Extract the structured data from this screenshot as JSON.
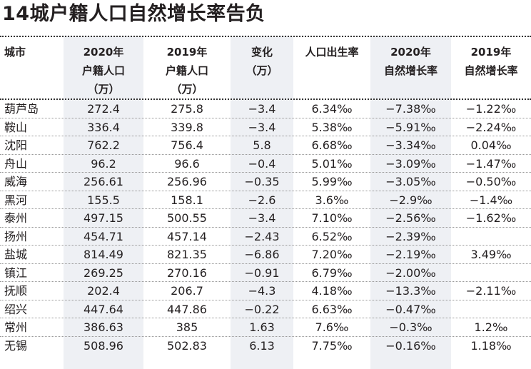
{
  "title": "14城户籍人口自然增长率告负",
  "columns": [
    {
      "key": "city",
      "lines": [
        "城市"
      ]
    },
    {
      "key": "pop2020",
      "lines": [
        "2020年",
        "户籍人口",
        "（万）"
      ]
    },
    {
      "key": "pop2019",
      "lines": [
        "2019年",
        "户籍人口",
        "（万）"
      ]
    },
    {
      "key": "change",
      "lines": [
        "变化",
        "（万）"
      ]
    },
    {
      "key": "birth_rate",
      "lines": [
        "人口出生率"
      ]
    },
    {
      "key": "growth2020",
      "lines": [
        "2020年",
        "自然增长率"
      ]
    },
    {
      "key": "growth2019",
      "lines": [
        "2019年",
        "自然增长率"
      ]
    }
  ],
  "rows": [
    [
      "葫芦岛",
      "272.4",
      "275.8",
      "−3.4",
      "6.34‰",
      "−7.38‰",
      "−1.22‰"
    ],
    [
      "鞍山",
      "336.4",
      "339.8",
      "−3.4",
      "5.38‰",
      "−5.91‰",
      "−2.24‰"
    ],
    [
      "沈阳",
      "762.2",
      "756.4",
      "5.8",
      "6.68‰",
      "−3.34‰",
      "0.04‰"
    ],
    [
      "舟山",
      "96.2",
      "96.6",
      "−0.4",
      "5.01‰",
      "−3.09‰",
      "−1.47‰"
    ],
    [
      "威海",
      "256.61",
      "256.96",
      "−0.35",
      "5.99‰",
      "−3.05‰",
      "−0.50‰"
    ],
    [
      "黑河",
      "155.5",
      "158.1",
      "−2.6",
      "3.6‰",
      "−2.9‰",
      "−1.4‰"
    ],
    [
      "泰州",
      "497.15",
      "500.55",
      "−3.4",
      "7.10‰",
      "−2.56‰",
      "−1.62‰"
    ],
    [
      "扬州",
      "454.71",
      "457.14",
      "−2.43",
      "6.52‰",
      "−2.39‰",
      ""
    ],
    [
      "盐城",
      "814.49",
      "821.35",
      "−6.86",
      "7.20‰",
      "−2.19‰",
      "3.49‰"
    ],
    [
      "镇江",
      "269.25",
      "270.16",
      "−0.91",
      "6.79‰",
      "−2.00‰",
      ""
    ],
    [
      "抚顺",
      "202.4",
      "206.7",
      "−4.3",
      "4.18‰",
      "−13.3‰",
      "−2.11‰"
    ],
    [
      "绍兴",
      "447.64",
      "447.86",
      "−0.22",
      "6.63‰",
      "−0.47‰",
      ""
    ],
    [
      "常州",
      "386.63",
      "385",
      "1.63",
      "7.6‰",
      "−0.3‰",
      "1.2‰"
    ],
    [
      "无锡",
      "508.96",
      "502.83",
      "6.13",
      "7.75‰",
      "−0.16‰",
      "1.18‰"
    ]
  ],
  "colors": {
    "shade": "#eef0f4",
    "text": "#231f20",
    "rule": "#333333"
  },
  "chart_data": {
    "type": "table",
    "title": "14城户籍人口自然增长率告负",
    "columns": [
      "城市",
      "2020年户籍人口（万）",
      "2019年户籍人口（万）",
      "变化（万）",
      "人口出生率",
      "2020年自然增长率",
      "2019年自然增长率"
    ],
    "rows": [
      [
        "葫芦岛",
        272.4,
        275.8,
        -3.4,
        "6.34‰",
        "-7.38‰",
        "-1.22‰"
      ],
      [
        "鞍山",
        336.4,
        339.8,
        -3.4,
        "5.38‰",
        "-5.91‰",
        "-2.24‰"
      ],
      [
        "沈阳",
        762.2,
        756.4,
        5.8,
        "6.68‰",
        "-3.34‰",
        "0.04‰"
      ],
      [
        "舟山",
        96.2,
        96.6,
        -0.4,
        "5.01‰",
        "-3.09‰",
        "-1.47‰"
      ],
      [
        "威海",
        256.61,
        256.96,
        -0.35,
        "5.99‰",
        "-3.05‰",
        "-0.50‰"
      ],
      [
        "黑河",
        155.5,
        158.1,
        -2.6,
        "3.6‰",
        "-2.9‰",
        "-1.4‰"
      ],
      [
        "泰州",
        497.15,
        500.55,
        -3.4,
        "7.10‰",
        "-2.56‰",
        "-1.62‰"
      ],
      [
        "扬州",
        454.71,
        457.14,
        -2.43,
        "6.52‰",
        "-2.39‰",
        null
      ],
      [
        "盐城",
        814.49,
        821.35,
        -6.86,
        "7.20‰",
        "-2.19‰",
        "3.49‰"
      ],
      [
        "镇江",
        269.25,
        270.16,
        -0.91,
        "6.79‰",
        "-2.00‰",
        null
      ],
      [
        "抚顺",
        202.4,
        206.7,
        -4.3,
        "4.18‰",
        "-13.3‰",
        "-2.11‰"
      ],
      [
        "绍兴",
        447.64,
        447.86,
        -0.22,
        "6.63‰",
        "-0.47‰",
        null
      ],
      [
        "常州",
        386.63,
        385,
        1.63,
        "7.6‰",
        "-0.3‰",
        "1.2‰"
      ],
      [
        "无锡",
        508.96,
        502.83,
        6.13,
        "7.75‰",
        "-0.16‰",
        "1.18‰"
      ]
    ]
  }
}
